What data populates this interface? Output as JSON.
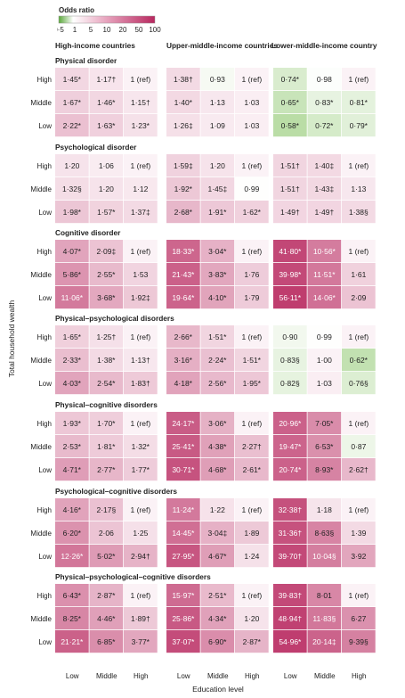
{
  "chart_data": {
    "type": "heatmap",
    "legend": {
      "title": "Odds ratio",
      "ticks": [
        "0·5",
        "1",
        "5",
        "10",
        "20",
        "50",
        "100"
      ],
      "low_color": "#5aa83a",
      "mid_color": "#ffffff",
      "high_color": "#b8285f"
    },
    "country_groups": [
      "High-income countries",
      "Upper-middle-income countries",
      "Lower-middle-income country"
    ],
    "wealth_levels": [
      "High",
      "Middle",
      "Low"
    ],
    "education_levels": [
      "Low",
      "Middle",
      "High"
    ],
    "ylabel": "Total household wealth",
    "xlabel": "Education level",
    "panels": [
      {
        "title": "Physical disorder",
        "groups": [
          [
            [
              "1·45*",
              "1·17†",
              "1 (ref)"
            ],
            [
              "1·67*",
              "1·46*",
              "1·15†"
            ],
            [
              "2·22*",
              "1·63*",
              "1·23*"
            ]
          ],
          [
            [
              "1·38†",
              "0·93",
              "1 (ref)"
            ],
            [
              "1·40*",
              "1·13",
              "1·03"
            ],
            [
              "1·26‡",
              "1·09",
              "1·03"
            ]
          ],
          [
            [
              "0·74*",
              "0·98",
              "1 (ref)"
            ],
            [
              "0·65*",
              "0·83*",
              "0·81*"
            ],
            [
              "0·58*",
              "0·72*",
              "0·79*"
            ]
          ]
        ]
      },
      {
        "title": "Psychological disorder",
        "groups": [
          [
            [
              "1·20",
              "1·06",
              "1 (ref)"
            ],
            [
              "1·32§",
              "1·20",
              "1·12"
            ],
            [
              "1·98*",
              "1·57*",
              "1·37‡"
            ]
          ],
          [
            [
              "1·59‡",
              "1·20",
              "1 (ref)"
            ],
            [
              "1·92*",
              "1·45‡",
              "0·99"
            ],
            [
              "2·68*",
              "1·91*",
              "1·62*"
            ]
          ],
          [
            [
              "1·51†",
              "1·40‡",
              "1 (ref)"
            ],
            [
              "1·51†",
              "1·43‡",
              "1·13"
            ],
            [
              "1·49†",
              "1·49†",
              "1·38§"
            ]
          ]
        ]
      },
      {
        "title": "Cognitive disorder",
        "groups": [
          [
            [
              "4·07*",
              "2·09‡",
              "1 (ref)"
            ],
            [
              "5·86*",
              "2·55*",
              "1·53"
            ],
            [
              "11·06*",
              "3·68*",
              "1·92‡"
            ]
          ],
          [
            [
              "18·33*",
              "3·04*",
              "1 (ref)"
            ],
            [
              "21·43*",
              "3·83*",
              "1·76"
            ],
            [
              "19·64*",
              "4·10*",
              "1·79"
            ]
          ],
          [
            [
              "41·80*",
              "10·56*",
              "1 (ref)"
            ],
            [
              "39·98*",
              "11·51*",
              "1·61"
            ],
            [
              "56·11*",
              "14·06*",
              "2·09"
            ]
          ]
        ]
      },
      {
        "title": "Physical–psychological disorders",
        "groups": [
          [
            [
              "1·65*",
              "1·25†",
              "1 (ref)"
            ],
            [
              "2·33*",
              "1·38*",
              "1·13†"
            ],
            [
              "4·03*",
              "2·54*",
              "1·83†"
            ]
          ],
          [
            [
              "2·66*",
              "1·51*",
              "1 (ref)"
            ],
            [
              "3·16*",
              "2·24*",
              "1·51*"
            ],
            [
              "4·18*",
              "2·56*",
              "1·95*"
            ]
          ],
          [
            [
              "0·90",
              "0·99",
              "1 (ref)"
            ],
            [
              "0·83§",
              "1·00",
              "0·62*"
            ],
            [
              "0·82§",
              "1·03",
              "0·76§"
            ]
          ]
        ]
      },
      {
        "title": "Physical–cognitive disorders",
        "groups": [
          [
            [
              "1·93*",
              "1·70*",
              "1 (ref)"
            ],
            [
              "2·53*",
              "1·81*",
              "1·32*"
            ],
            [
              "4·71*",
              "2·77*",
              "1·77*"
            ]
          ],
          [
            [
              "24·17*",
              "3·06*",
              "1 (ref)"
            ],
            [
              "25·41*",
              "4·38*",
              "2·27†"
            ],
            [
              "30·71*",
              "4·68*",
              "2·61*"
            ]
          ],
          [
            [
              "20·96*",
              "7·05*",
              "1 (ref)"
            ],
            [
              "19·47*",
              "6·53*",
              "0·87"
            ],
            [
              "20·74*",
              "8·93*",
              "2·62†"
            ]
          ]
        ]
      },
      {
        "title": "Psychological–cognitive disorders",
        "groups": [
          [
            [
              "4·16*",
              "2·17§",
              "1 (ref)"
            ],
            [
              "6·20*",
              "2·06",
              "1·25"
            ],
            [
              "12·26*",
              "5·02*",
              "2·94†"
            ]
          ],
          [
            [
              "11·24*",
              "1·22",
              "1 (ref)"
            ],
            [
              "14·45*",
              "3·04‡",
              "1·89"
            ],
            [
              "27·95*",
              "4·67*",
              "1·24"
            ]
          ],
          [
            [
              "32·38†",
              "1·18",
              "1 (ref)"
            ],
            [
              "31·36†",
              "8·63§",
              "1·39"
            ],
            [
              "39·70†",
              "10·04§",
              "3·92"
            ]
          ]
        ]
      },
      {
        "title": "Physical–psychological–cognitive disorders",
        "groups": [
          [
            [
              "6·43*",
              "2·87*",
              "1 (ref)"
            ],
            [
              "8·25*",
              "4·46*",
              "1·89†"
            ],
            [
              "21·21*",
              "6·85*",
              "3·77*"
            ]
          ],
          [
            [
              "15·97*",
              "2·51*",
              "1 (ref)"
            ],
            [
              "25·86*",
              "4·34*",
              "1·20"
            ],
            [
              "37·07*",
              "6·90*",
              "2·87*"
            ]
          ],
          [
            [
              "39·83†",
              "8·01",
              "1 (ref)"
            ],
            [
              "48·94†",
              "11·83§",
              "6·27"
            ],
            [
              "54·96*",
              "20·14‡",
              "9·39§"
            ]
          ]
        ]
      }
    ]
  }
}
